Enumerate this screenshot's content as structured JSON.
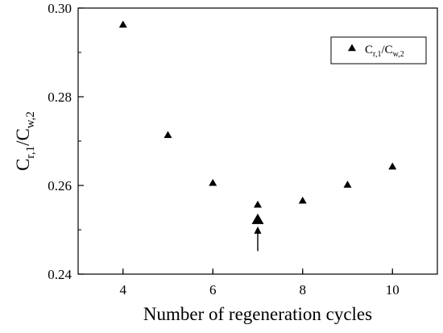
{
  "chart_data": {
    "type": "scatter",
    "xlabel": "Number of regeneration cycles",
    "ylabel": {
      "base1": "C",
      "sub1": "r,1",
      "sep": "/",
      "base2": "C",
      "sub2": "w,2"
    },
    "xlim": [
      3,
      11
    ],
    "ylim": [
      0.24,
      0.3
    ],
    "xticks": [
      4,
      6,
      8,
      10
    ],
    "yticks": [
      0.24,
      0.26,
      0.28,
      0.3
    ],
    "xtick_labels": [
      "4",
      "6",
      "8",
      "10"
    ],
    "ytick_labels": [
      "0.24",
      "0.26",
      "0.28",
      "0.30"
    ],
    "grid": false,
    "legend_position": "top-right",
    "series": [
      {
        "name": {
          "base1": "C",
          "sub1": "r,1",
          "sep": "/",
          "base2": "C",
          "sub2": "w,2"
        },
        "marker": "triangle",
        "color": "#000000",
        "x": [
          4,
          5,
          6,
          7,
          8,
          9,
          10
        ],
        "y": [
          0.2962,
          0.2713,
          0.2605,
          0.2556,
          0.2565,
          0.2601,
          0.2642
        ]
      }
    ],
    "highlight": {
      "x": 7,
      "y": 0.2522,
      "marker": "triangle-large",
      "arrow_from_y": 0.2452
    }
  }
}
